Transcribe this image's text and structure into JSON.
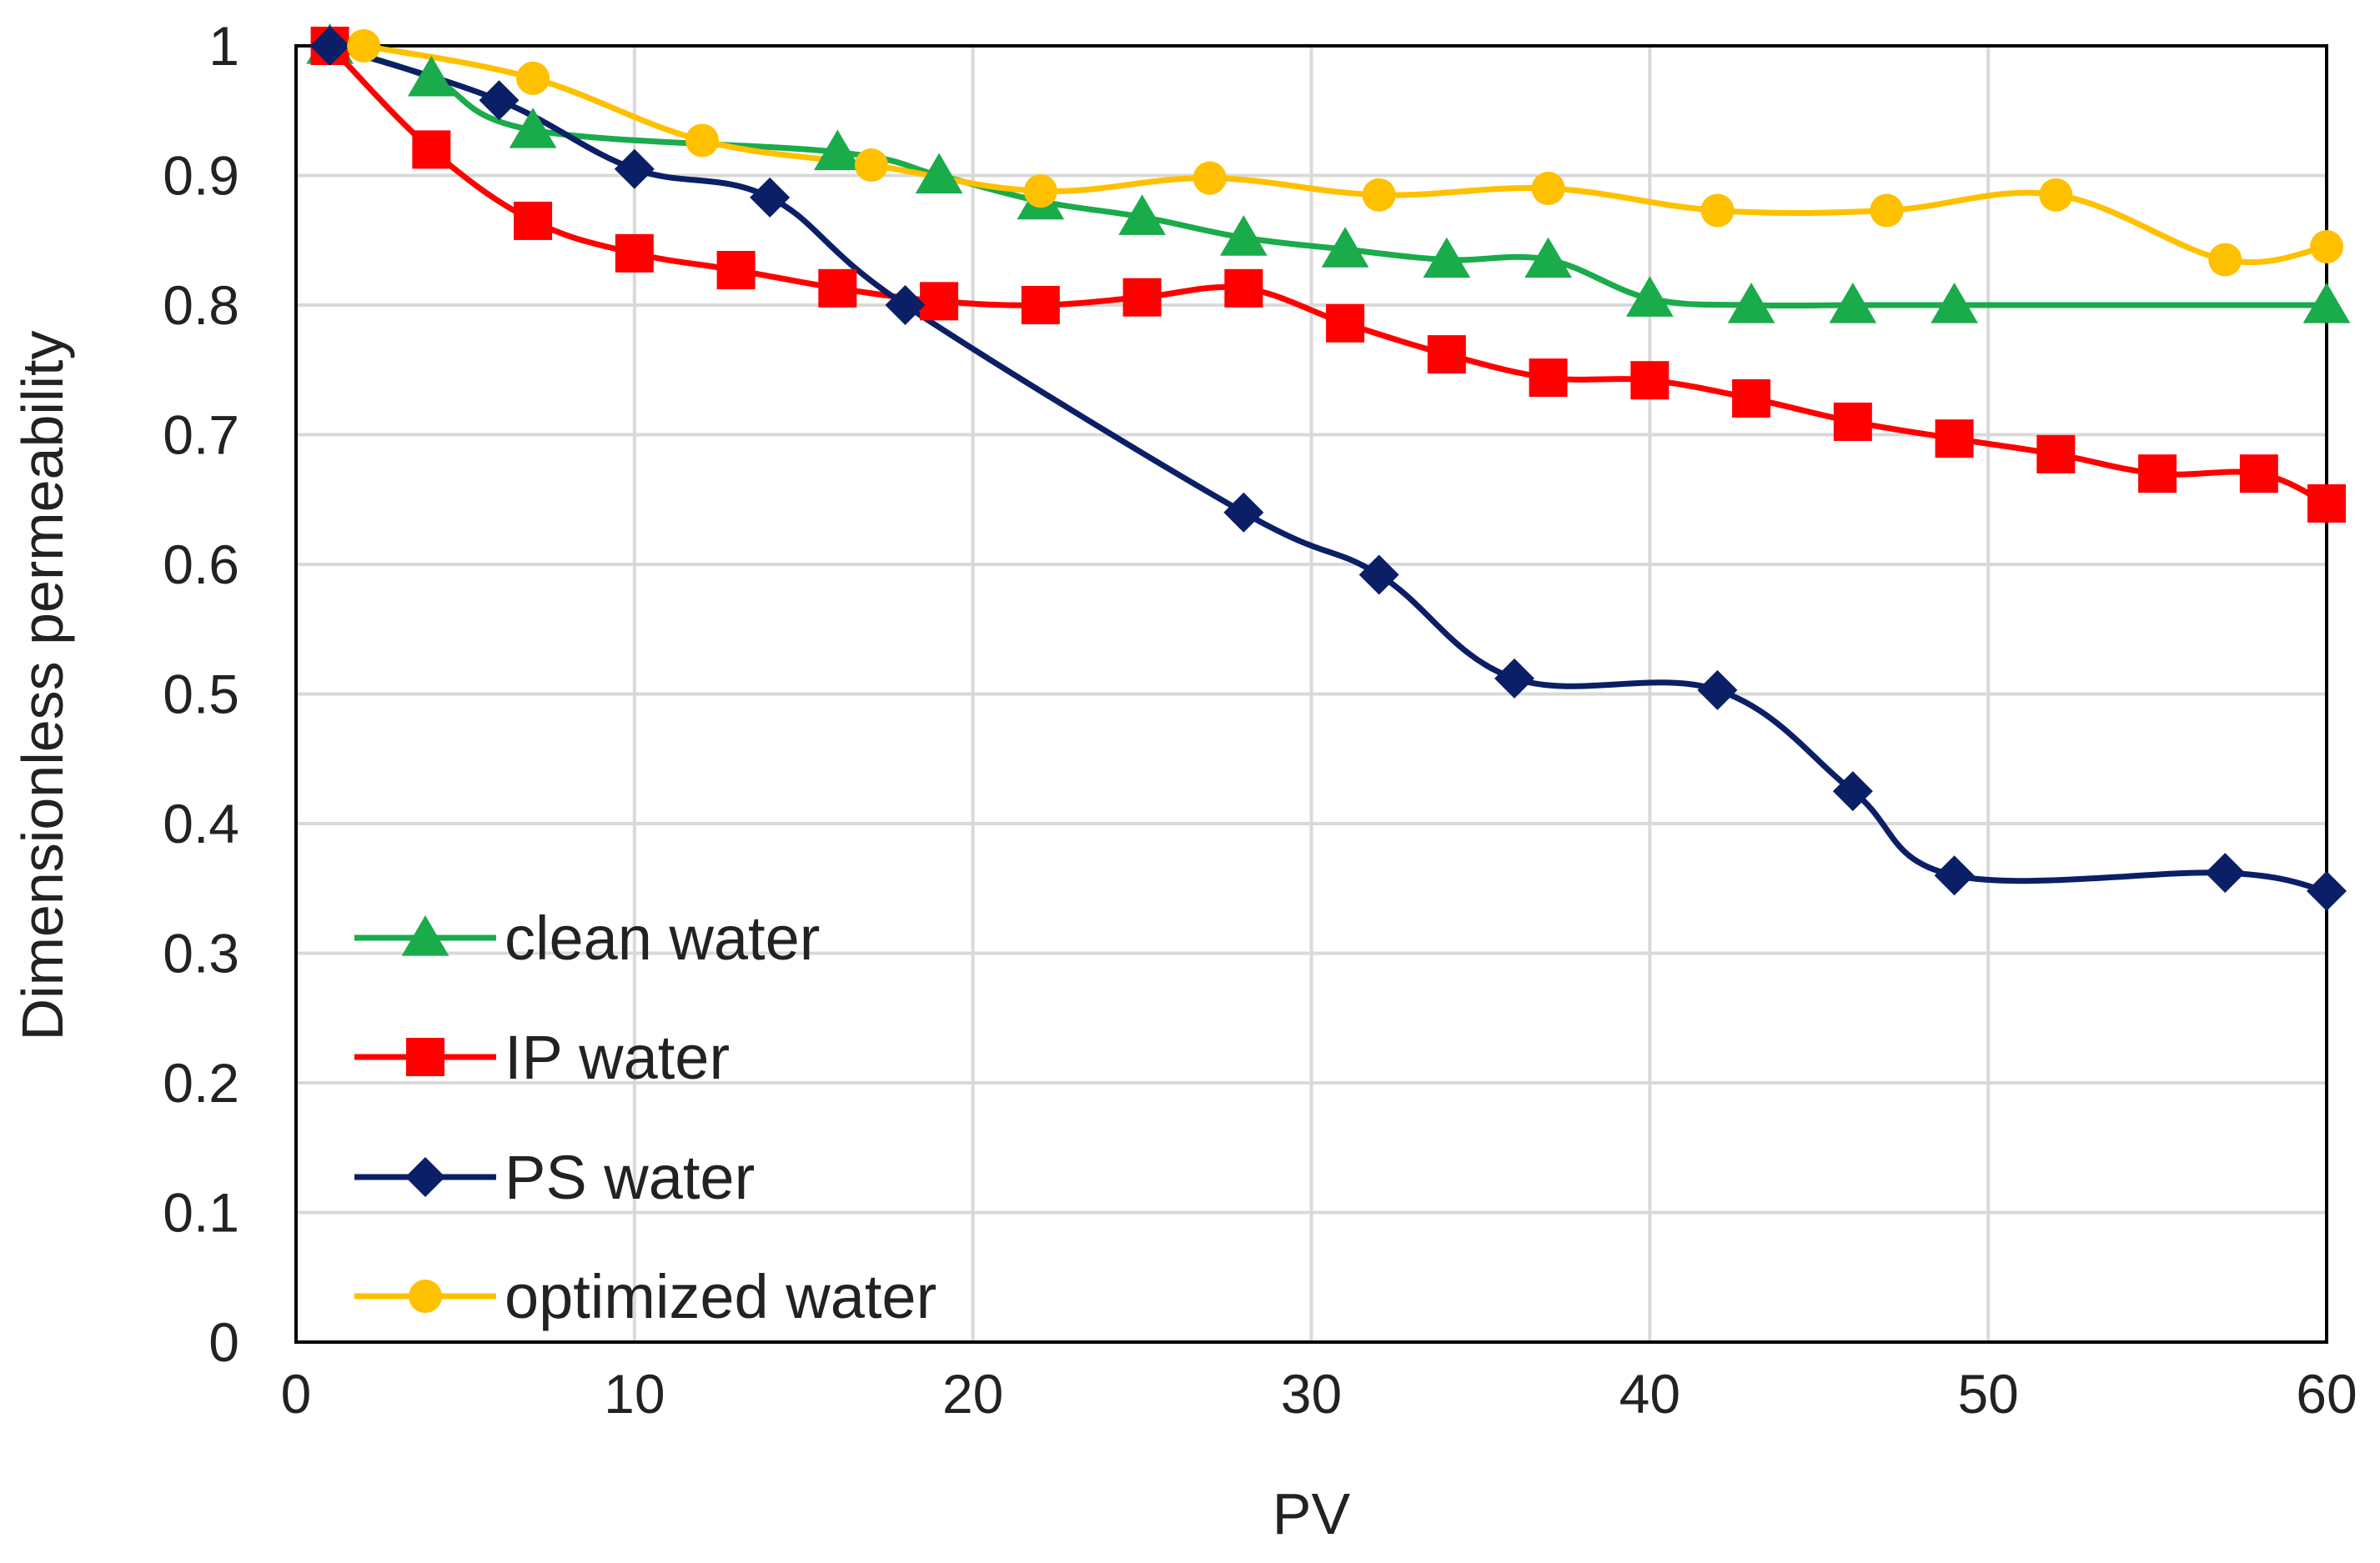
{
  "chart_data": {
    "type": "line",
    "title": "",
    "xlabel": "PV",
    "ylabel": "Dimensionless permeability",
    "xlim": [
      0,
      60
    ],
    "ylim": [
      0,
      1
    ],
    "x_ticks": [
      "0",
      "10",
      "20",
      "30",
      "40",
      "50",
      "60"
    ],
    "y_ticks": [
      "0",
      "0.1",
      "0.2",
      "0.3",
      "0.4",
      "0.5",
      "0.6",
      "0.7",
      "0.8",
      "0.9",
      "1"
    ],
    "grid": true,
    "legend_position": "bottom-left",
    "series": [
      {
        "name": "clean water",
        "color": "#1aab4b",
        "marker": "triangle",
        "x": [
          1,
          4,
          7,
          16,
          19,
          22,
          25,
          28,
          31,
          34,
          37,
          40,
          43,
          46,
          49,
          60
        ],
        "y": [
          1.0,
          0.975,
          0.935,
          0.918,
          0.9,
          0.88,
          0.868,
          0.852,
          0.843,
          0.835,
          0.835,
          0.805,
          0.8,
          0.8,
          0.8,
          0.8
        ]
      },
      {
        "name": "IP water",
        "color": "#ff0000",
        "marker": "square",
        "x": [
          1,
          4,
          7,
          10,
          13,
          16,
          19,
          22,
          25,
          28,
          31,
          34,
          37,
          40,
          43,
          46,
          49,
          52,
          55,
          58,
          60
        ],
        "y": [
          1.0,
          0.92,
          0.865,
          0.84,
          0.827,
          0.813,
          0.803,
          0.8,
          0.806,
          0.813,
          0.786,
          0.762,
          0.744,
          0.742,
          0.728,
          0.71,
          0.697,
          0.685,
          0.67,
          0.67,
          0.647
        ]
      },
      {
        "name": "PS water",
        "color": "#0b1f66",
        "marker": "diamond",
        "x": [
          1,
          6,
          10,
          14,
          18,
          28,
          32,
          36,
          42,
          46,
          49,
          57,
          60
        ],
        "y": [
          1.0,
          0.958,
          0.905,
          0.883,
          0.8,
          0.64,
          0.592,
          0.512,
          0.503,
          0.425,
          0.36,
          0.362,
          0.348
        ]
      },
      {
        "name": "optimized water",
        "color": "#ffc000",
        "marker": "circle",
        "x": [
          2,
          7,
          12,
          17,
          22,
          27,
          32,
          37,
          42,
          47,
          52,
          57,
          60
        ],
        "y": [
          1.0,
          0.975,
          0.927,
          0.908,
          0.888,
          0.898,
          0.885,
          0.89,
          0.873,
          0.873,
          0.885,
          0.835,
          0.845
        ]
      }
    ]
  }
}
